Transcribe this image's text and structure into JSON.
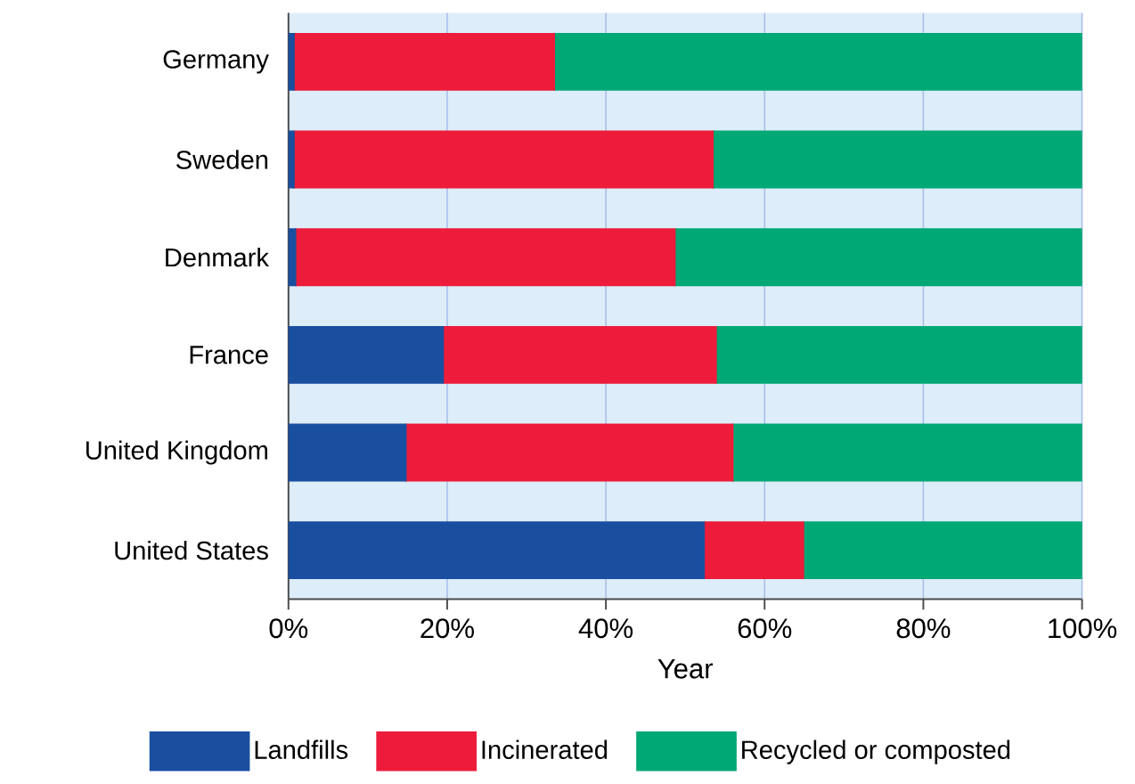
{
  "chart_data": {
    "type": "bar",
    "orientation": "horizontal",
    "stacked": true,
    "categories": [
      "Germany",
      "Sweden",
      "Denmark",
      "France",
      "United Kingdom",
      "United States"
    ],
    "series": [
      {
        "name": "Landfills",
        "color": "#1a4fa0",
        "values": [
          0.7,
          0.7,
          0.9,
          19.5,
          14.8,
          52.4
        ]
      },
      {
        "name": "Incinerated",
        "color": "#ed1c3a",
        "values": [
          32.8,
          52.8,
          47.8,
          34.4,
          41.2,
          12.5
        ]
      },
      {
        "name": "Recycled or composted",
        "color": "#00a875",
        "values": [
          66.5,
          46.5,
          51.3,
          46.1,
          44.0,
          35.1
        ]
      }
    ],
    "xlabel": "Year",
    "xlim": [
      0,
      100
    ],
    "xticks": [
      {
        "value": 0,
        "label": "0%"
      },
      {
        "value": 20,
        "label": "20%"
      },
      {
        "value": 40,
        "label": "40%"
      },
      {
        "value": 60,
        "label": "60%"
      },
      {
        "value": 80,
        "label": "80%"
      },
      {
        "value": 100,
        "label": "100%"
      }
    ],
    "grid": "x",
    "legend": "bottom"
  }
}
